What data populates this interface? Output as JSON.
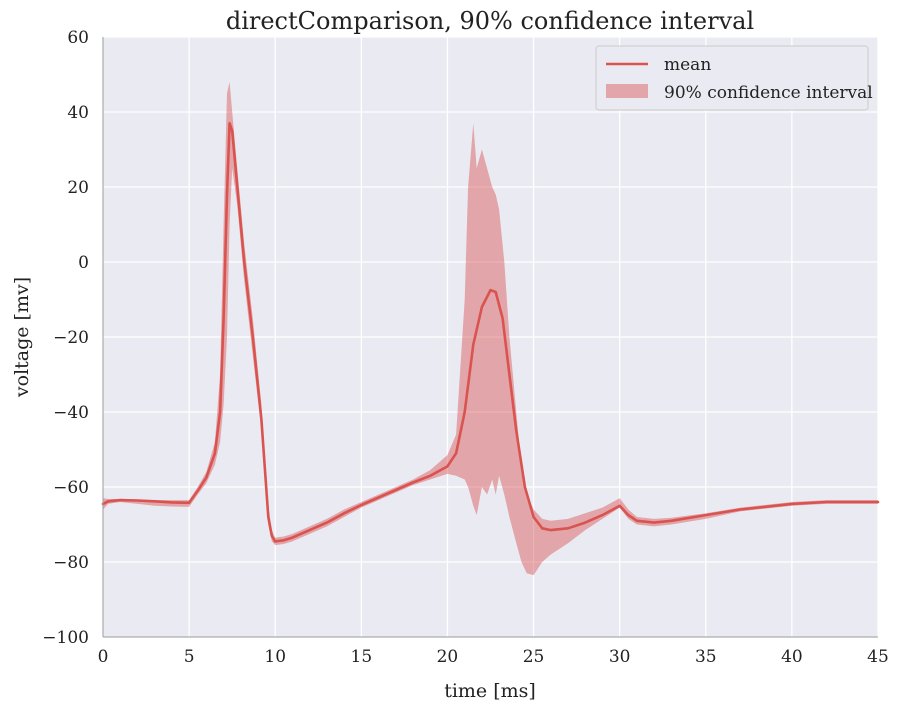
{
  "chart_data": {
    "type": "line",
    "title": "directComparison, 90% confidence interval",
    "xlabel": "time [ms]",
    "ylabel": "voltage [mv]",
    "xlim": [
      0,
      45
    ],
    "ylim": [
      -100,
      60
    ],
    "x_ticks": [
      0,
      5,
      10,
      15,
      20,
      25,
      30,
      35,
      40,
      45
    ],
    "x_tick_labels": [
      "0",
      "5",
      "10",
      "15",
      "20",
      "25",
      "30",
      "35",
      "40",
      "45"
    ],
    "y_ticks": [
      -100,
      -80,
      -60,
      -40,
      -20,
      0,
      20,
      40,
      60
    ],
    "y_tick_labels": [
      "−100",
      "−80",
      "−60",
      "−40",
      "−20",
      "0",
      "20",
      "40",
      "60"
    ],
    "grid": true,
    "background": "#eaeaf2",
    "legend_position": "top-right",
    "legend": [
      {
        "label": "mean",
        "kind": "line"
      },
      {
        "label": "90% confidence interval",
        "kind": "patch"
      }
    ],
    "series": [
      {
        "name": "mean",
        "color": "#d9534f",
        "x": [
          0,
          0.3,
          1,
          2,
          3,
          4,
          5,
          5.5,
          6,
          6.5,
          6.8,
          7.0,
          7.2,
          7.35,
          7.5,
          7.8,
          8.2,
          8.7,
          9.2,
          9.6,
          9.8,
          10.0,
          10.5,
          11,
          12,
          13,
          14,
          15,
          16,
          17,
          18,
          19,
          20,
          20.5,
          21,
          21.5,
          22,
          22.5,
          22.8,
          23.2,
          23.6,
          24.0,
          24.5,
          25.0,
          25.5,
          26,
          27,
          28,
          29,
          30,
          30.5,
          31,
          32,
          33,
          35,
          37,
          40,
          42,
          45
        ],
        "y": [
          -64.5,
          -63.8,
          -63.5,
          -63.6,
          -63.8,
          -64.1,
          -64.2,
          -61,
          -57.5,
          -51,
          -40,
          -15,
          18,
          37,
          35,
          20,
          0,
          -20,
          -42,
          -68,
          -73,
          -74.5,
          -74.2,
          -73.5,
          -71.5,
          -69.5,
          -67,
          -64.8,
          -62.8,
          -60.8,
          -58.8,
          -57,
          -54.5,
          -51,
          -40,
          -22,
          -12,
          -7.5,
          -8,
          -15,
          -30,
          -45,
          -60,
          -68,
          -71,
          -71.5,
          -71,
          -69.5,
          -67.5,
          -65,
          -67.5,
          -69,
          -69.5,
          -69,
          -67.5,
          -66,
          -64.5,
          -64,
          -64
        ]
      },
      {
        "name": "90% confidence interval",
        "color": "#d9534f",
        "x": [
          0,
          0.3,
          1,
          2,
          3,
          4,
          5,
          5.5,
          6,
          6.5,
          6.8,
          7.0,
          7.2,
          7.35,
          7.5,
          7.8,
          8.2,
          8.7,
          9.2,
          9.6,
          9.8,
          10.0,
          10.5,
          11,
          12,
          13,
          14,
          15,
          16,
          17,
          18,
          19,
          20,
          20.5,
          21,
          21.2,
          21.5,
          21.7,
          22,
          22.3,
          22.6,
          22.8,
          23,
          23.3,
          23.6,
          24,
          24.3,
          24.6,
          25,
          25.5,
          26,
          27,
          28,
          29,
          30,
          30.5,
          31,
          32,
          33,
          35,
          37,
          40,
          42,
          45
        ],
        "y_upper": [
          -63,
          -63.2,
          -63.2,
          -63.3,
          -63.5,
          -63.5,
          -63.5,
          -60,
          -56,
          -48,
          -30,
          10,
          45,
          48,
          40,
          25,
          5,
          -15,
          -38,
          -65,
          -71.5,
          -73.5,
          -73.2,
          -72.5,
          -70.5,
          -68.5,
          -66,
          -64,
          -62,
          -60,
          -58,
          -55.5,
          -51.5,
          -46,
          -10,
          20,
          37,
          25,
          30,
          25,
          20,
          18,
          14,
          0,
          -20,
          -40,
          -55,
          -62,
          -66,
          -68.5,
          -69,
          -68.5,
          -67,
          -65.5,
          -63,
          -66,
          -68,
          -68.5,
          -68.2,
          -67,
          -65.5,
          -64,
          -63.5,
          -63.5
        ],
        "y_lower": [
          -66,
          -64.5,
          -64,
          -64.5,
          -65,
          -65.2,
          -65.3,
          -62,
          -59,
          -54,
          -48,
          -38,
          -20,
          10,
          25,
          15,
          -5,
          -25,
          -45,
          -70,
          -74.5,
          -75.5,
          -75.2,
          -74.5,
          -72.5,
          -70.5,
          -68,
          -65.5,
          -63.5,
          -61.5,
          -59.5,
          -58,
          -56.5,
          -57,
          -58,
          -60,
          -65,
          -67.5,
          -60,
          -62,
          -58,
          -62,
          -57,
          -62,
          -68,
          -75,
          -80,
          -83,
          -83.5,
          -80,
          -78,
          -75,
          -71.5,
          -68.5,
          -65.5,
          -68.5,
          -70,
          -70.5,
          -70,
          -68.5,
          -66.5,
          -65,
          -64.5,
          -64.5
        ]
      }
    ]
  }
}
